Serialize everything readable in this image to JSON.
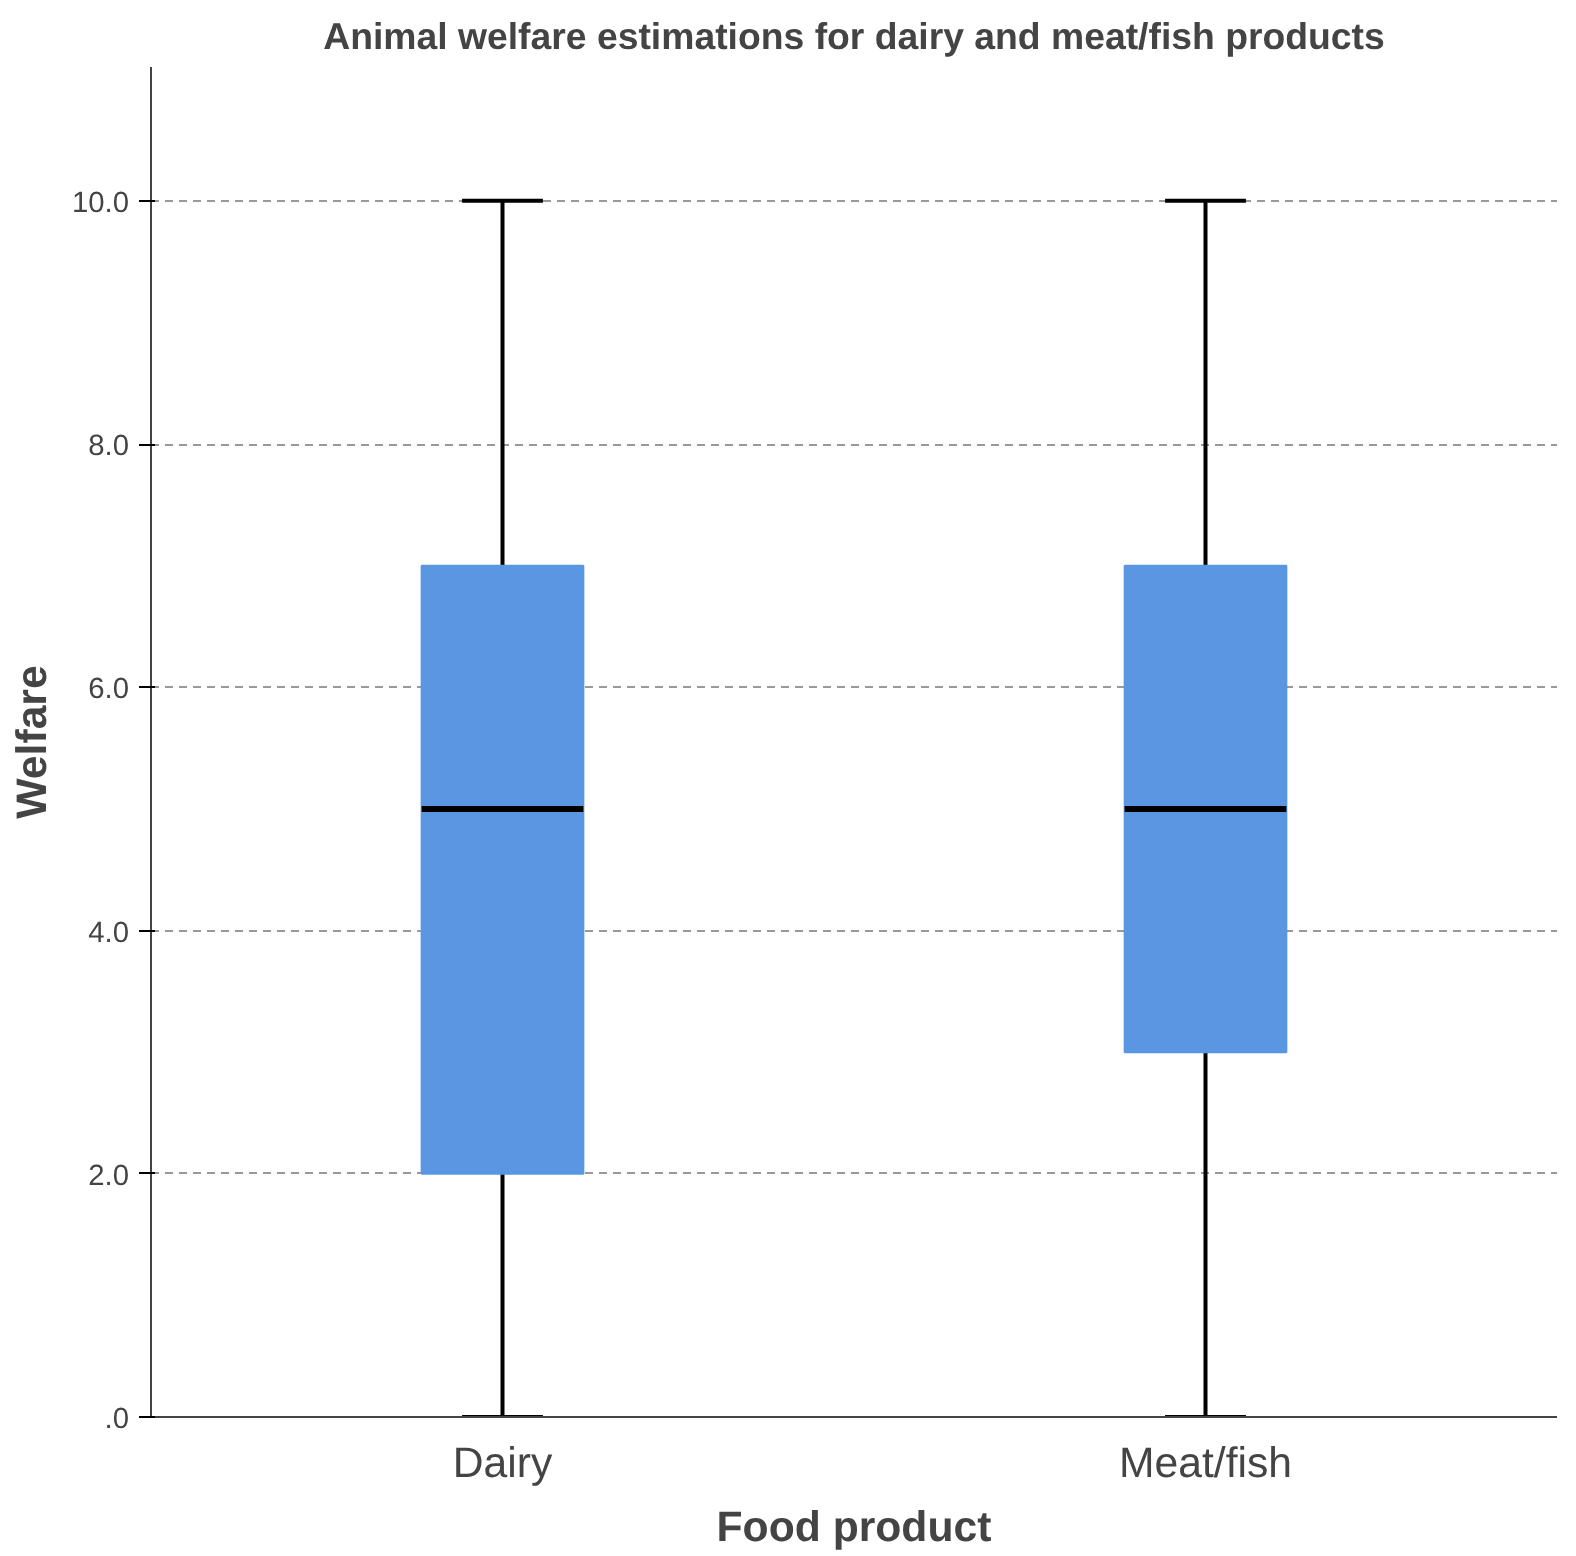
{
  "chart_data": {
    "type": "box",
    "title": "Animal welfare estimations for dairy and meat/fish products",
    "xlabel": "Food product",
    "ylabel": "Welfare",
    "categories": [
      "Dairy",
      "Meat/fish"
    ],
    "boxes": [
      {
        "low": 0,
        "q1": 2,
        "median": 5,
        "q3": 7,
        "high": 10
      },
      {
        "low": 0,
        "q1": 3,
        "median": 5,
        "q3": 7,
        "high": 10
      }
    ],
    "color": "#5a96e1",
    "ylim": [
      0,
      11.1
    ],
    "yticks": [
      {
        "value": 0,
        "label": ".0"
      },
      {
        "value": 2,
        "label": "2.0"
      },
      {
        "value": 4,
        "label": "4.0"
      },
      {
        "value": 6,
        "label": "6.0"
      },
      {
        "value": 8,
        "label": "8.0"
      },
      {
        "value": 10,
        "label": "10.0"
      }
    ],
    "grid": "y"
  }
}
